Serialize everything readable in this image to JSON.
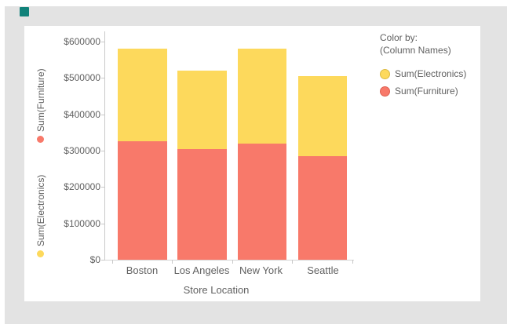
{
  "app": {
    "icon_color": "#11827a"
  },
  "colors": {
    "canvas_bg": "#e3e3e3",
    "panel_bg": "#ffffff",
    "axis_line": "#c9c9c9",
    "text": "#616161",
    "furniture": "#f8796a",
    "furniture_border": "#de5f50",
    "electronics": "#fdd95c",
    "electronics_border": "#dcba40"
  },
  "chart_data": {
    "type": "bar",
    "stacked": true,
    "title": "",
    "categories": [
      "Boston",
      "Los Angeles",
      "New York",
      "Seattle"
    ],
    "series": [
      {
        "name": "Sum(Furniture)",
        "color": "#f8796a",
        "values": [
          325000,
          305000,
          320000,
          285000
        ]
      },
      {
        "name": "Sum(Electronics)",
        "color": "#fdd95c",
        "values": [
          255000,
          215000,
          260000,
          220000
        ]
      }
    ],
    "xlabel": "Store Location",
    "y_axis": {
      "range": [
        0,
        600000
      ],
      "tick_values": [
        600000,
        500000,
        400000,
        300000,
        200000,
        100000,
        0
      ],
      "tick_labels": [
        "$600000",
        "$500000",
        "$400000",
        "$300000",
        "$200000",
        "$100000",
        "$0"
      ],
      "axis_selectors": [
        {
          "label": "Sum(Furniture)",
          "dot_color": "#f8796a"
        },
        {
          "label": "Sum(Electronics)",
          "dot_color": "#fdd95c"
        }
      ]
    },
    "grid": false,
    "legend": {
      "position": "right",
      "title": "Color by:",
      "subtitle": "(Column Names)",
      "entries": [
        {
          "label": "Sum(Electronics)",
          "color": "#fdd95c",
          "border": "#dcba40"
        },
        {
          "label": "Sum(Furniture)",
          "color": "#f8796a",
          "border": "#de5f50"
        }
      ]
    }
  }
}
